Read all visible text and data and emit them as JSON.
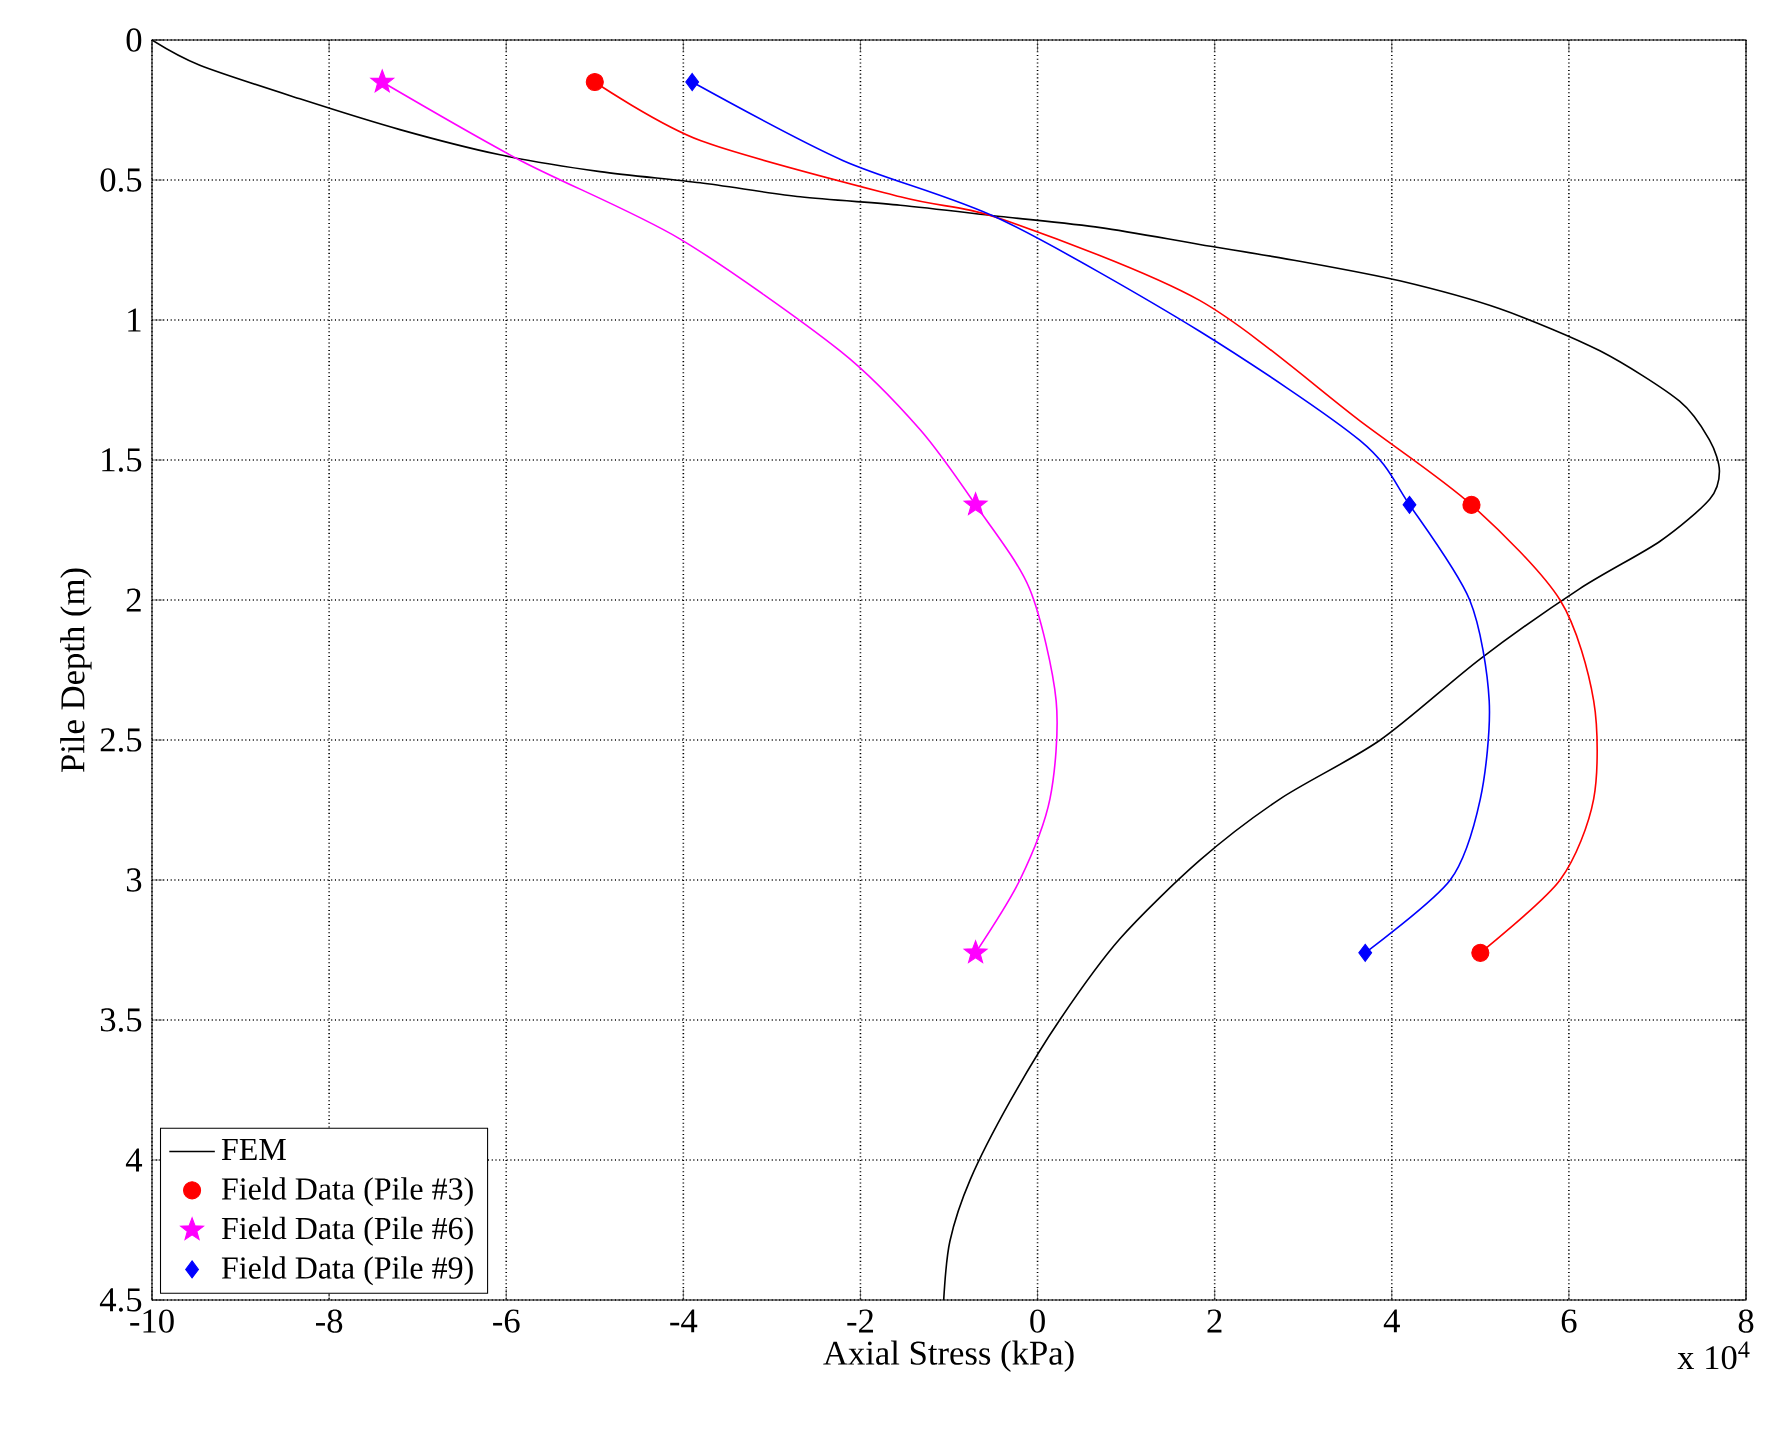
{
  "chart_data": {
    "type": "line",
    "xlabel": "Axial Stress (kPa)",
    "ylabel": "Pile Depth (m)",
    "xlim": [
      -10,
      8
    ],
    "xticks": [
      -10,
      -8,
      -6,
      -4,
      -2,
      0,
      2,
      4,
      6,
      8
    ],
    "ylim": [
      4.5,
      0
    ],
    "yticks": [
      0,
      0.5,
      1,
      1.5,
      2,
      2.5,
      3,
      3.5,
      4,
      4.5
    ],
    "grid": true,
    "legend": "bottom left",
    "annotations": [
      "x 10$^{4}$"
    ],
    "series": [
      {
        "name": "FEM",
        "color": "#000000",
        "marker": "none",
        "x": [
          -10,
          -9.46,
          -8.33,
          -7.2,
          -6.07,
          -4.94,
          -3.81,
          -2.68,
          -1.55,
          -0.42,
          0.71,
          1.83,
          2.96,
          4.09,
          5.22,
          6.35,
          7.25,
          7.59,
          7.7,
          7.59,
          7.03,
          6.12,
          5.0,
          3.87,
          2.74,
          1.83,
          0.93,
          0.25,
          -0.31,
          -0.76,
          -0.99,
          -1.06
        ],
        "values": [
          0,
          0.09,
          0.21,
          0.32,
          0.41,
          0.47,
          0.51,
          0.56,
          0.59,
          0.63,
          0.67,
          0.73,
          0.79,
          0.86,
          0.96,
          1.11,
          1.29,
          1.43,
          1.54,
          1.64,
          1.79,
          1.96,
          2.21,
          2.5,
          2.71,
          2.93,
          3.21,
          3.5,
          3.79,
          4.07,
          4.29,
          4.5
        ]
      },
      {
        "name": "Field Data (Pile #3)",
        "type": "scatter",
        "color": "#ff0000",
        "marker": "circle",
        "x": [
          -5,
          4.9,
          5.0
        ],
        "values": [
          0.15,
          1.66,
          3.26
        ]
      },
      {
        "name": "Field Data (Pile #6)",
        "type": "scatter",
        "color": "#ff00ff",
        "marker": "star",
        "x": [
          -7.4,
          -0.7,
          -0.7
        ],
        "values": [
          0.15,
          1.66,
          3.26
        ]
      },
      {
        "name": "Field Data (Pile #9)",
        "type": "scatter",
        "color": "#0000ff",
        "marker": "diamond",
        "x": [
          -3.9,
          4.2,
          3.7
        ],
        "values": [
          0.15,
          1.66,
          3.26
        ]
      },
      {
        "type": "line",
        "color": "#ff0000",
        "marker": "none",
        "x": [
          -5,
          -3.8,
          -1.55,
          -0.4,
          1.83,
          3.64,
          4.9,
          5.9,
          6.28,
          6.28,
          5.9,
          5.0
        ],
        "values": [
          0.15,
          0.36,
          0.56,
          0.64,
          0.93,
          1.36,
          1.66,
          2.0,
          2.36,
          2.71,
          3.0,
          3.26
        ]
      },
      {
        "type": "line",
        "color": "#ff00ff",
        "marker": "none",
        "x": [
          -7.4,
          -5.84,
          -4.04,
          -2.23,
          -1.33,
          -0.7,
          -0.09,
          0.21,
          0.14,
          -0.2,
          -0.7
        ],
        "values": [
          0.15,
          0.43,
          0.71,
          1.11,
          1.39,
          1.66,
          1.96,
          2.36,
          2.71,
          3.0,
          3.26
        ]
      },
      {
        "type": "line",
        "color": "#0000ff",
        "marker": "none",
        "x": [
          -3.9,
          -2.2,
          -0.42,
          1.83,
          3.64,
          4.2,
          4.88,
          5.1,
          5.0,
          4.66,
          3.7
        ],
        "values": [
          0.15,
          0.43,
          0.64,
          1.04,
          1.43,
          1.66,
          2.0,
          2.36,
          2.71,
          3.0,
          3.26
        ]
      }
    ]
  }
}
